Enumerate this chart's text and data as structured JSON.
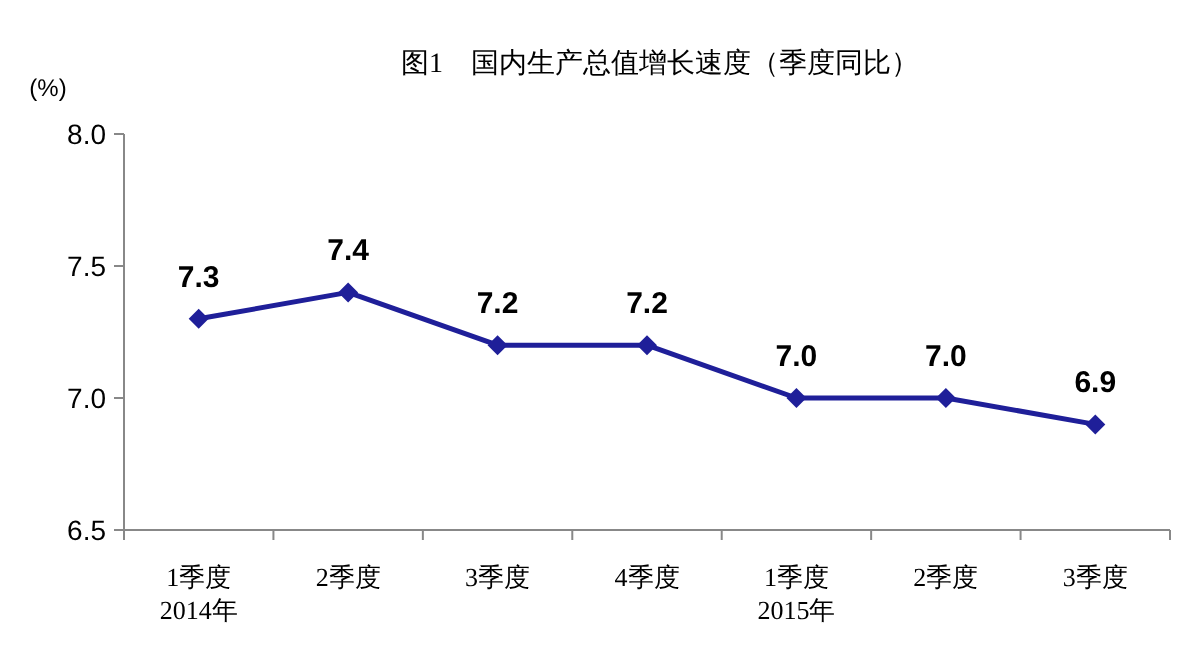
{
  "chart_data": {
    "type": "line",
    "title": "图1　国内生产总值增长速度（季度同比）",
    "ylabel": "(%)",
    "categories": [
      "1季度\n2014年",
      "2季度",
      "3季度",
      "4季度",
      "1季度\n2015年",
      "2季度",
      "3季度"
    ],
    "series": [
      {
        "color": "#1f1f99",
        "values": [
          7.3,
          7.4,
          7.2,
          7.2,
          7.0,
          7.0,
          6.9
        ],
        "value_labels": [
          "7.3",
          "7.4",
          "7.2",
          "7.2",
          "7.0",
          "7.0",
          "6.9"
        ]
      }
    ],
    "ylim": [
      6.5,
      8.0
    ],
    "yticks": [
      {
        "value": 6.5,
        "label": "6.5"
      },
      {
        "value": 7.0,
        "label": "7.0"
      },
      {
        "value": 7.5,
        "label": "7.5"
      },
      {
        "value": 8.0,
        "label": "8.0"
      }
    ],
    "marker": "diamond",
    "line_style": "solid",
    "grid": false
  }
}
